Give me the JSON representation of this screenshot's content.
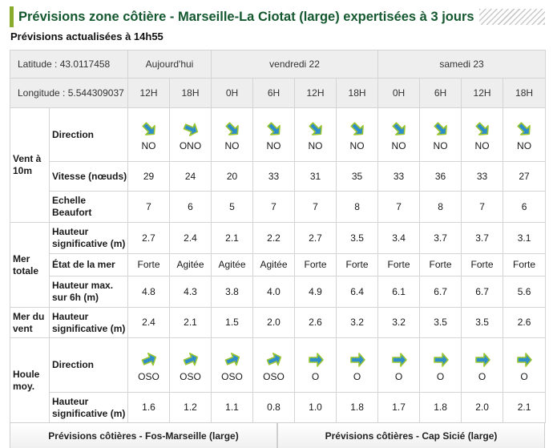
{
  "title": "Prévisions zone côtière - Marseille-La Ciotat (large) expertisées à 3 jours",
  "subtitle": "Prévisions actualisées à 14h55",
  "latitude": "Latitude : 43.0117458",
  "longitude": "Longitude : 5.544309037",
  "days": [
    "Aujourd'hui",
    "vendredi 22",
    "samedi 23"
  ],
  "hours": [
    "12H",
    "18H",
    "0H",
    "6H",
    "12H",
    "18H",
    "0H",
    "6H",
    "12H",
    "18H"
  ],
  "groups": {
    "vent": "Vent à 10m",
    "mer_totale": "Mer totale",
    "mer_vent": "Mer du vent",
    "houle": "Houle moy."
  },
  "labels": {
    "direction": "Direction",
    "vitesse": "Vitesse (nœuds)",
    "beaufort": "Echelle Beaufort",
    "hauteur_sig": "Hauteur significative (m)",
    "etat": "État de la mer",
    "hauteur_max": "Hauteur max. sur 6h (m)",
    "mv_hauteur": "Hauteur significative (m)",
    "houle_direction": "Direction",
    "houle_hauteur": "Hauteur significative (m)"
  },
  "wind_direction": [
    "NO",
    "ONO",
    "NO",
    "NO",
    "NO",
    "NO",
    "NO",
    "NO",
    "NO",
    "NO"
  ],
  "wind_speed": [
    "29",
    "24",
    "20",
    "33",
    "31",
    "35",
    "33",
    "36",
    "33",
    "27"
  ],
  "beaufort": [
    "7",
    "6",
    "5",
    "7",
    "7",
    "8",
    "7",
    "8",
    "7",
    "6"
  ],
  "sea_height": [
    "2.7",
    "2.4",
    "2.1",
    "2.2",
    "2.7",
    "3.5",
    "3.4",
    "3.7",
    "3.7",
    "3.1"
  ],
  "sea_state": [
    "Forte",
    "Agitée",
    "Agitée",
    "Agitée",
    "Forte",
    "Forte",
    "Forte",
    "Forte",
    "Forte",
    "Forte"
  ],
  "sea_max": [
    "4.8",
    "4.3",
    "3.8",
    "4.0",
    "4.9",
    "6.4",
    "6.1",
    "6.7",
    "6.7",
    "5.6"
  ],
  "wind_sea_height": [
    "2.4",
    "2.1",
    "1.5",
    "2.0",
    "2.6",
    "3.2",
    "3.2",
    "3.5",
    "3.5",
    "2.6"
  ],
  "swell_direction": [
    "OSO",
    "OSO",
    "OSO",
    "OSO",
    "O",
    "O",
    "O",
    "O",
    "O",
    "O"
  ],
  "swell_height": [
    "1.6",
    "1.2",
    "1.1",
    "0.8",
    "1.0",
    "1.8",
    "1.7",
    "1.8",
    "2.0",
    "2.1"
  ],
  "footer_links": [
    "Prévisions côtières - Fos-Marseille (large)",
    "Prévisions côtières - Cap Sicié (large)"
  ],
  "colors": {
    "title_green": "#14582f",
    "accent_bar": "#8aac2c",
    "arrow_blue": "#2e8ecb",
    "arrow_green": "#9cc62f"
  },
  "icons": {
    "wind_arrow": "wind-direction-arrow-icon",
    "swell_arrow": "swell-direction-arrow-icon"
  }
}
